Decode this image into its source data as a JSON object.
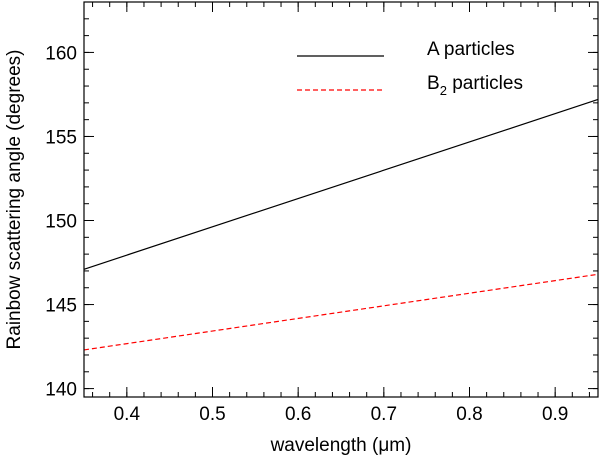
{
  "chart_data": {
    "type": "line",
    "xlabel_prefix": "wavelength (",
    "xlabel_unit": "μm",
    "xlabel_suffix": ")",
    "ylabel": "Rainbow scattering angle (degrees)",
    "xlim": [
      0.35,
      0.95
    ],
    "ylim": [
      139.5,
      163
    ],
    "x_ticks": [
      0.4,
      0.5,
      0.6,
      0.7,
      0.8,
      0.9
    ],
    "x_tick_labels": [
      "0.4",
      "0.5",
      "0.6",
      "0.7",
      "0.8",
      "0.9"
    ],
    "y_ticks": [
      140,
      145,
      150,
      155,
      160
    ],
    "y_tick_labels": [
      "140",
      "145",
      "150",
      "155",
      "160"
    ],
    "x_minor_step": 0.02,
    "y_minor_step": 1,
    "grid": false,
    "legend_position": "top-right",
    "series": [
      {
        "name_main": "A particles",
        "name_sub": "",
        "name_after": "",
        "color": "#000000",
        "style": "solid",
        "x": [
          0.35,
          0.95
        ],
        "y": [
          147.1,
          157.2
        ]
      },
      {
        "name_main": "B",
        "name_sub": "2",
        "name_after": " particles",
        "color": "#ff0000",
        "style": "dashed",
        "x": [
          0.35,
          0.95
        ],
        "y": [
          142.3,
          146.8
        ]
      }
    ]
  }
}
